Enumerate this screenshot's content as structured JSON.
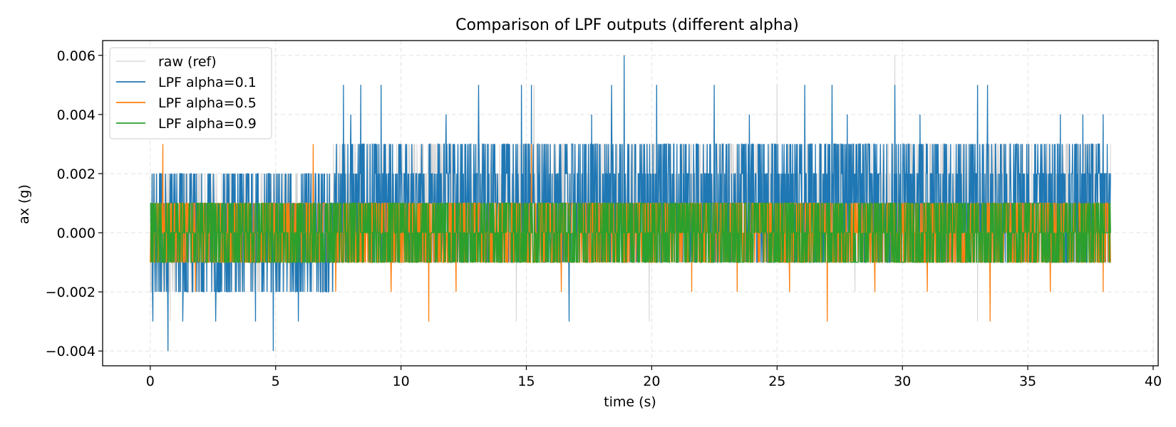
{
  "chart_data": {
    "type": "line",
    "title": "Comparison of LPF outputs (different alpha)",
    "xlabel": "time (s)",
    "ylabel": "ax (g)",
    "xlim": [
      -1.9,
      40.2
    ],
    "ylim": [
      -0.0045,
      0.0065
    ],
    "xticks": [
      0,
      5,
      10,
      15,
      20,
      25,
      30,
      35,
      40
    ],
    "xtick_labels": [
      "0",
      "5",
      "10",
      "15",
      "20",
      "25",
      "30",
      "35",
      "40"
    ],
    "yticks": [
      -0.004,
      -0.002,
      0.0,
      0.002,
      0.004,
      0.006
    ],
    "ytick_labels": [
      "−0.004",
      "−0.002",
      "0.000",
      "0.002",
      "0.004",
      "0.006"
    ],
    "grid": true,
    "legend_position": "top-left",
    "x_range": [
      0,
      38.3
    ],
    "series": [
      {
        "name": "raw (ref)",
        "color": "#d3d3d3",
        "band_by_segment": [
          {
            "x_start": 0,
            "x_end": 7.3,
            "low": -0.002,
            "high": 0.002
          },
          {
            "x_start": 7.3,
            "x_end": 38.3,
            "low": -0.001,
            "high": 0.003
          }
        ],
        "spikes": [
          {
            "x": 0.8,
            "y": -0.003
          },
          {
            "x": 14.6,
            "y": -0.003
          },
          {
            "x": 15.3,
            "y": 0.005
          },
          {
            "x": 19.9,
            "y": -0.003
          },
          {
            "x": 25.0,
            "y": 0.005
          },
          {
            "x": 28.1,
            "y": -0.002
          },
          {
            "x": 29.7,
            "y": 0.006
          },
          {
            "x": 33.0,
            "y": -0.003
          }
        ]
      },
      {
        "name": "LPF alpha=0.1",
        "color": "#1f77b4",
        "band_by_segment": [
          {
            "x_start": 0,
            "x_end": 7.3,
            "low": -0.002,
            "high": 0.002
          },
          {
            "x_start": 7.3,
            "x_end": 38.3,
            "low": -0.001,
            "high": 0.003
          }
        ],
        "spikes": [
          {
            "x": 0.1,
            "y": -0.003
          },
          {
            "x": 0.7,
            "y": -0.004
          },
          {
            "x": 1.3,
            "y": -0.003
          },
          {
            "x": 2.6,
            "y": -0.003
          },
          {
            "x": 4.2,
            "y": -0.003
          },
          {
            "x": 4.9,
            "y": -0.004
          },
          {
            "x": 5.9,
            "y": -0.003
          },
          {
            "x": 7.7,
            "y": 0.005
          },
          {
            "x": 8.0,
            "y": 0.004
          },
          {
            "x": 8.4,
            "y": 0.005
          },
          {
            "x": 9.2,
            "y": 0.005
          },
          {
            "x": 11.8,
            "y": 0.004
          },
          {
            "x": 13.1,
            "y": 0.005
          },
          {
            "x": 14.8,
            "y": 0.005
          },
          {
            "x": 15.2,
            "y": 0.005
          },
          {
            "x": 16.7,
            "y": -0.003
          },
          {
            "x": 17.6,
            "y": 0.004
          },
          {
            "x": 18.4,
            "y": 0.005
          },
          {
            "x": 18.9,
            "y": 0.006
          },
          {
            "x": 20.2,
            "y": 0.005
          },
          {
            "x": 22.5,
            "y": 0.005
          },
          {
            "x": 23.9,
            "y": 0.004
          },
          {
            "x": 26.1,
            "y": 0.005
          },
          {
            "x": 27.2,
            "y": 0.005
          },
          {
            "x": 27.8,
            "y": 0.004
          },
          {
            "x": 29.7,
            "y": 0.005
          },
          {
            "x": 30.7,
            "y": 0.004
          },
          {
            "x": 33.0,
            "y": 0.005
          },
          {
            "x": 33.4,
            "y": 0.005
          },
          {
            "x": 36.3,
            "y": 0.004
          },
          {
            "x": 37.2,
            "y": 0.004
          },
          {
            "x": 38.0,
            "y": 0.004
          }
        ]
      },
      {
        "name": "LPF alpha=0.5",
        "color": "#ff7f0e",
        "band_by_segment": [
          {
            "x_start": 0,
            "x_end": 38.3,
            "low": -0.001,
            "high": 0.001
          }
        ],
        "spikes": [
          {
            "x": 0.5,
            "y": 0.003
          },
          {
            "x": 1.8,
            "y": -0.002
          },
          {
            "x": 6.5,
            "y": 0.003
          },
          {
            "x": 7.4,
            "y": -0.002
          },
          {
            "x": 9.6,
            "y": -0.002
          },
          {
            "x": 11.1,
            "y": -0.003
          },
          {
            "x": 12.2,
            "y": -0.002
          },
          {
            "x": 15.2,
            "y": 0.003
          },
          {
            "x": 16.4,
            "y": -0.002
          },
          {
            "x": 21.6,
            "y": -0.002
          },
          {
            "x": 23.4,
            "y": -0.002
          },
          {
            "x": 25.5,
            "y": -0.002
          },
          {
            "x": 27.0,
            "y": -0.003
          },
          {
            "x": 28.9,
            "y": -0.002
          },
          {
            "x": 31.0,
            "y": -0.002
          },
          {
            "x": 33.5,
            "y": -0.003
          },
          {
            "x": 35.9,
            "y": -0.002
          },
          {
            "x": 38.0,
            "y": -0.002
          }
        ]
      },
      {
        "name": "LPF alpha=0.9",
        "color": "#2ca02c",
        "band_by_segment": [
          {
            "x_start": 0,
            "x_end": 38.3,
            "low": -0.001,
            "high": 0.001
          }
        ],
        "spikes": []
      }
    ]
  }
}
